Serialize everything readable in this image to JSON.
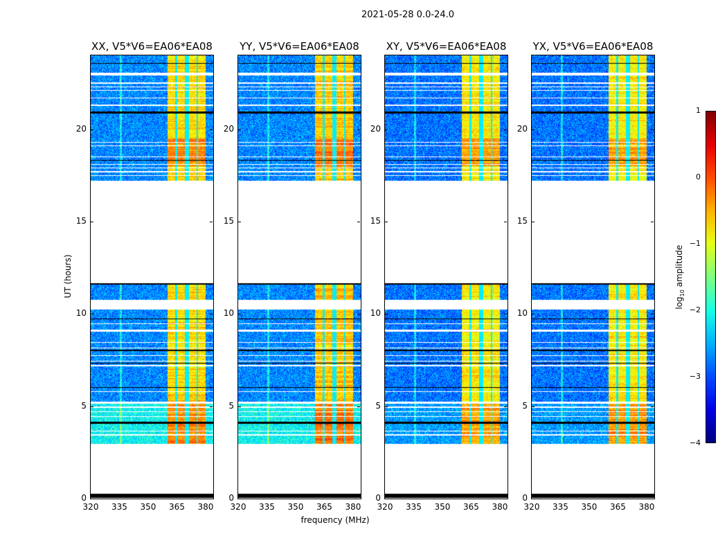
{
  "chart_data": {
    "type": "heatmap",
    "title": "2021-05-28 0.0-24.0",
    "xlabel": "frequency (MHz)",
    "ylabel": "UT (hours)",
    "xlim": [
      320,
      384
    ],
    "ylim": [
      0,
      24
    ],
    "xticks": [
      "320",
      "335",
      "350",
      "365",
      "380"
    ],
    "xtick_values": [
      320,
      335,
      350,
      365,
      380
    ],
    "yticks": [
      "0",
      "5",
      "10",
      "15",
      "20"
    ],
    "ytick_values": [
      0,
      5,
      10,
      15,
      20
    ],
    "colormap": "jet",
    "colorbar": {
      "label_prefix": "log",
      "label_sub": "10",
      "label_suffix": " amplitude",
      "range": [
        -4,
        1
      ],
      "ticks": [
        "1",
        "0",
        "−1",
        "−2",
        "−3",
        "−4"
      ],
      "tick_values": [
        1,
        0,
        -1,
        -2,
        -3,
        -4
      ]
    },
    "panels": [
      {
        "title": "XX, V5*V6=EA06*EA08",
        "background_low_hours": -2.1,
        "background": -2.7,
        "band": -0.7
      },
      {
        "title": "YY, V5*V6=EA06*EA08",
        "background_low_hours": -2.1,
        "background": -2.7,
        "band": -0.6
      },
      {
        "title": "XY, V5*V6=EA06*EA08",
        "background_low_hours": -2.6,
        "background": -2.8,
        "band": -0.8
      },
      {
        "title": "YX, V5*V6=EA06*EA08",
        "background_low_hours": -2.6,
        "background": -2.8,
        "band": -0.8
      }
    ],
    "data_segments_hours": [
      [
        2.95,
        4.05
      ],
      [
        4.15,
        5.15
      ],
      [
        5.25,
        9.05
      ],
      [
        9.15,
        9.45
      ],
      [
        9.5,
        10.25
      ],
      [
        10.75,
        11.62
      ],
      [
        17.2,
        22.9
      ],
      [
        23.05,
        24.0
      ]
    ],
    "zero_rows_hours": [
      [
        0.05,
        0.25
      ],
      [
        4.05,
        4.15
      ],
      [
        6.0,
        6.05
      ],
      [
        7.3,
        7.35
      ],
      [
        8.0,
        8.05
      ],
      [
        9.7,
        9.75
      ],
      [
        11.6,
        11.65
      ],
      [
        18.3,
        18.35
      ],
      [
        20.85,
        20.95
      ],
      [
        23.55,
        23.6
      ]
    ],
    "flagged_rows_hours": [
      3.45,
      3.65,
      4.45,
      4.7,
      4.95,
      5.8,
      7.2,
      7.45,
      7.75,
      8.15,
      8.45,
      17.5,
      17.7,
      17.9,
      18.1,
      18.5,
      19.1,
      19.3,
      21.3,
      21.7,
      22.1,
      22.3,
      22.5
    ],
    "band_mhz": [
      360,
      380
    ],
    "band_notches_mhz": [
      364.5,
      370,
      375.5
    ]
  }
}
